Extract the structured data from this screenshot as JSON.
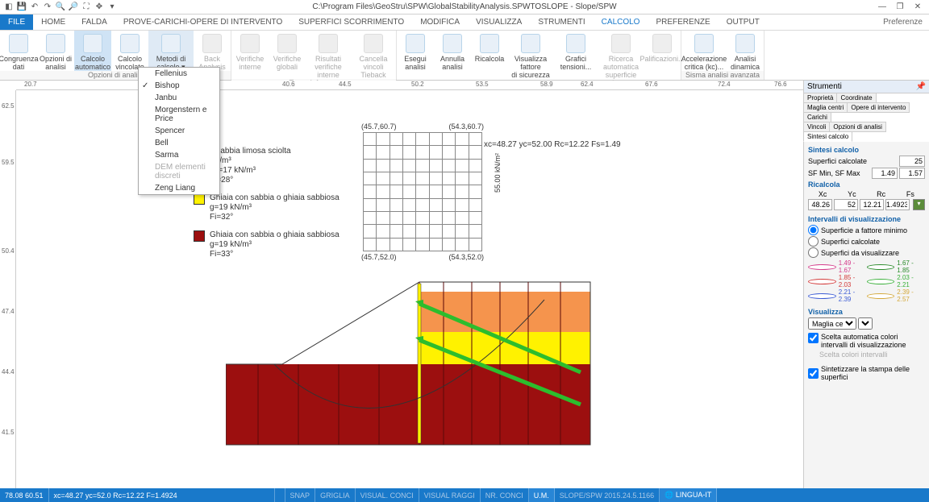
{
  "title": "C:\\Program Files\\GeoStru\\SPW\\GlobalStabilityAnalysis.SPWTOSLOPE - Slope/SPW",
  "menubar": {
    "tabs": [
      "FILE",
      "HOME",
      "FALDA",
      "PROVE-CARICHI-OPERE DI INTERVENTO",
      "SUPERFICI SCORRIMENTO",
      "MODIFICA",
      "VISUALIZZA",
      "STRUMENTI",
      "CALCOLO",
      "PREFERENZE",
      "OUTPUT"
    ],
    "pref": "Preferenze"
  },
  "ribbon": {
    "groups": [
      {
        "label": "Opzioni di analisi",
        "btns": [
          {
            "t": "Congruenza\ndati",
            "sel": false,
            "dim": false
          },
          {
            "t": "Opzioni di\nanalisi",
            "sel": false,
            "dim": false
          },
          {
            "t": "Calcolo\nautomatico",
            "sel": true,
            "dim": false
          },
          {
            "t": "Calcolo\nvincolato",
            "sel": false,
            "dim": false
          },
          {
            "t": "Metodi di\ncalcolo ▾",
            "sel": true,
            "sel2": true,
            "dim": false
          },
          {
            "t": "Back\nAnalysis",
            "sel": false,
            "dim": true
          }
        ]
      },
      {
        "label": "Terre rinforzate",
        "btns": [
          {
            "t": "Verifiche\ninterne",
            "dim": true
          },
          {
            "t": "Verifiche\nglobali",
            "dim": true
          },
          {
            "t": "Risultati\nverifiche interne",
            "dim": true
          },
          {
            "t": "Cancella vincoli\nTieback",
            "dim": true
          }
        ]
      },
      {
        "label": "Calcolo",
        "btns": [
          {
            "t": "Esegui\nanalisi",
            "dim": false
          },
          {
            "t": "Annulla\nanalisi",
            "dim": false
          },
          {
            "t": "Ricalcola",
            "dim": false
          },
          {
            "t": "Visualizza fattore\ndi sicurezza",
            "dim": false
          },
          {
            "t": "Grafici\ntensioni...",
            "dim": false
          },
          {
            "t": "Ricerca automatica\nsuperficie forma generica",
            "dim": true
          },
          {
            "t": "Palificazioni...",
            "dim": true
          }
        ]
      },
      {
        "label": "Sisma analisi avanzata",
        "btns": [
          {
            "t": "Accelerazione\ncritica (kc)...",
            "dim": false
          },
          {
            "t": "Analisi\ndinamica",
            "dim": false
          }
        ]
      }
    ]
  },
  "dropdown": [
    "Fellenius",
    "Bishop",
    "Janbu",
    "Morgenstern e Price",
    "Spencer",
    "Bell",
    "Sarma",
    "DEM elementi discreti",
    "Zeng Liang"
  ],
  "dropdown_checked": "Bishop",
  "dropdown_dim": "DEM elementi discreti",
  "ruler_h": [
    {
      "p": 10,
      "v": "20.7"
    },
    {
      "p": 170,
      "v": "30.2"
    },
    {
      "p": 330,
      "v": "40.6"
    },
    {
      "p": 400,
      "v": "44.5"
    },
    {
      "p": 490,
      "v": "50.2"
    },
    {
      "p": 570,
      "v": "53.5"
    },
    {
      "p": 650,
      "v": "58.9"
    },
    {
      "p": 700,
      "v": "62.4"
    },
    {
      "p": 780,
      "v": "67.6"
    },
    {
      "p": 870,
      "v": "72.4"
    },
    {
      "p": 940,
      "v": "76.6"
    }
  ],
  "ruler_v": [
    {
      "p": 15,
      "v": "62.5"
    },
    {
      "p": 85,
      "v": "59.5"
    },
    {
      "p": 195,
      "v": "50.4"
    },
    {
      "p": 270,
      "v": "47.4"
    },
    {
      "p": 345,
      "v": "44.4"
    },
    {
      "p": 420,
      "v": "41.5"
    }
  ],
  "grid_labels": {
    "tl": "(45.7,60.7)",
    "tr": "(54.3,60.7)",
    "bl": "(45.7,52.0)",
    "br": "(54.3,52.0)"
  },
  "grid_side": "55.00 kN/m²",
  "result_line": "xc=48.27 yc=52.00 Rc=12.22 Fs=1.49",
  "legend": [
    {
      "color": "#f5944d",
      "lines": [
        "o sabbia limosa sciolta",
        "kN/m³",
        "gs=17 kN/m³",
        "Fi=28°"
      ]
    },
    {
      "color": "#fff200",
      "lines": [
        "Ghiaia con sabbia o ghiaia sabbiosa",
        "g=19 kN/m³",
        "Fi=32°"
      ]
    },
    {
      "color": "#9c0f0f",
      "lines": [
        "Ghiaia con sabbia o ghiaia sabbiosa",
        "g=19 kN/m³",
        "Fi=33°"
      ]
    }
  ],
  "rpanel": {
    "title": "Strumenti",
    "top_tabs": [
      "Proprietà",
      "Coordinate"
    ],
    "sub_tabs1": [
      "Maglia centri",
      "Opere di intervento",
      "Carichi"
    ],
    "sub_tabs2": [
      "Vincoli",
      "Opzioni di analisi",
      "Sintesi calcolo"
    ],
    "sect_sintesi": "Sintesi calcolo",
    "superfici_calc": "Superfici calcolate",
    "superfici_val": "25",
    "sf_label": "SF Min, SF Max",
    "sf_min": "1.49",
    "sf_max": "1.57",
    "ricalcola": "Ricalcola",
    "cols": [
      "Xc",
      "Yc",
      "Rc",
      "Fs"
    ],
    "vals": [
      "48.26",
      "52",
      "12.21",
      "1.49238"
    ],
    "interv": "Intervalli di visualizzazione",
    "radios": [
      "Superficie a fattore minimo",
      "Superfici calcolate",
      "Superfici da visualizzare"
    ],
    "ranges": [
      {
        "c": "#d43a8a",
        "t": "1.49 - 1.67"
      },
      {
        "c": "#2a8a2a",
        "t": "1.67 - 1.85"
      },
      {
        "c": "#d43a3a",
        "t": "1.85 - 2.03"
      },
      {
        "c": "#3ab03a",
        "t": "2.03 - 2.21"
      },
      {
        "c": "#3a5ad4",
        "t": "2.21 - 2.39"
      },
      {
        "c": "#d4a83a",
        "t": "2.39 - 2.57"
      }
    ],
    "visualizza": "Visualizza",
    "select_val": "Maglia centri",
    "check1": "Scelta automatica colori intervalli di visualizzazione",
    "link1": "Scelta colori intervalli",
    "check2": "Sintetizzare la stampa delle superfici"
  },
  "statusbar": {
    "coords": "78.08  60.51",
    "result": "xc=48.27 yc=52.0 Rc=12.22 F=1.4924",
    "items": [
      "SNAP",
      "GRIGLIA",
      "VISUAL. CONCI",
      "VISUAL RAGGI",
      "NR. CONCI",
      "U.M.",
      "SLOPE/SPW 2015.24.5.1166",
      "🌐 LINGUA-IT"
    ]
  },
  "colors": {
    "orange": "#f5944d",
    "yellow": "#fff200",
    "brown": "#9c0f0f",
    "green": "#2dbd2d"
  }
}
